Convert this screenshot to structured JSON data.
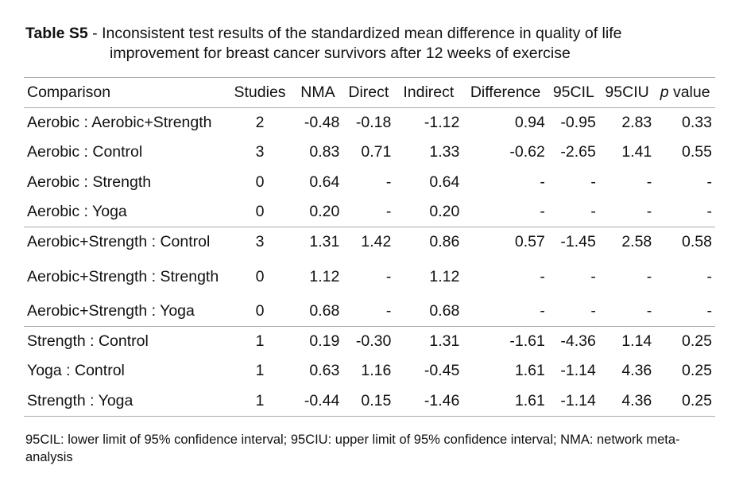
{
  "caption": {
    "label": "Table S5",
    "separator": " - ",
    "text_line1": "Inconsistent test results of the standardized mean difference in quality of life",
    "text_line2": "improvement for breast cancer survivors after 12 weeks of exercise"
  },
  "table": {
    "headers": {
      "comparison": "Comparison",
      "studies": "Studies",
      "nma": "NMA",
      "direct": "Direct",
      "indirect": "Indirect",
      "difference": "Difference",
      "ci_lower": "95CIL",
      "ci_upper": "95CIU",
      "p_italic": "p",
      "p_rest": " value"
    },
    "rows": [
      {
        "comparison": "Aerobic : Aerobic+Strength",
        "studies": "2",
        "nma": "-0.48",
        "direct": "-0.18",
        "indirect": "-1.12",
        "difference": "0.94",
        "ci_lower": "-0.95",
        "ci_upper": "2.83",
        "p": "0.33"
      },
      {
        "comparison": "Aerobic : Control",
        "studies": "3",
        "nma": "0.83",
        "direct": "0.71",
        "indirect": "1.33",
        "difference": "-0.62",
        "ci_lower": "-2.65",
        "ci_upper": "1.41",
        "p": "0.55"
      },
      {
        "comparison": "Aerobic : Strength",
        "studies": "0",
        "nma": "0.64",
        "direct": "-",
        "indirect": "0.64",
        "difference": "-",
        "ci_lower": "-",
        "ci_upper": "-",
        "p": "-"
      },
      {
        "comparison": "Aerobic : Yoga",
        "studies": "0",
        "nma": "0.20",
        "direct": "-",
        "indirect": "0.20",
        "difference": "-",
        "ci_lower": "-",
        "ci_upper": "-",
        "p": "-"
      },
      {
        "comparison": "Aerobic+Strength : Control",
        "studies": "3",
        "nma": "1.31",
        "direct": "1.42",
        "indirect": "0.86",
        "difference": "0.57",
        "ci_lower": "-1.45",
        "ci_upper": "2.58",
        "p": "0.58"
      },
      {
        "comparison": "Aerobic+Strength : Strength",
        "studies": "0",
        "nma": "1.12",
        "direct": "-",
        "indirect": "1.12",
        "difference": "-",
        "ci_lower": "-",
        "ci_upper": "-",
        "p": "-"
      },
      {
        "comparison": "Aerobic+Strength : Yoga",
        "studies": "0",
        "nma": "0.68",
        "direct": "-",
        "indirect": "0.68",
        "difference": "-",
        "ci_lower": "-",
        "ci_upper": "-",
        "p": "-"
      },
      {
        "comparison": "Strength : Control",
        "studies": "1",
        "nma": "0.19",
        "direct": "-0.30",
        "indirect": "1.31",
        "difference": "-1.61",
        "ci_lower": "-4.36",
        "ci_upper": "1.14",
        "p": "0.25"
      },
      {
        "comparison": "Yoga : Control",
        "studies": "1",
        "nma": "0.63",
        "direct": "1.16",
        "indirect": "-0.45",
        "difference": "1.61",
        "ci_lower": "-1.14",
        "ci_upper": "4.36",
        "p": "0.25"
      },
      {
        "comparison": "Strength : Yoga",
        "studies": "1",
        "nma": "-0.44",
        "direct": "0.15",
        "indirect": "-1.46",
        "difference": "1.61",
        "ci_lower": "-1.14",
        "ci_upper": "4.36",
        "p": "0.25"
      }
    ]
  },
  "footnote": "95CIL: lower limit of 95% confidence interval; 95CIU: upper limit of 95% confidence interval; NMA: network meta-analysis"
}
